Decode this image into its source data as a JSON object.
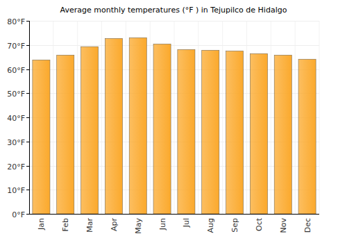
{
  "chart_data": {
    "type": "bar",
    "title": "Average monthly temperatures (°F ) in Tejupilco de Hidalgo",
    "categories": [
      "Jan",
      "Feb",
      "Mar",
      "Apr",
      "May",
      "Jun",
      "Jul",
      "Aug",
      "Sep",
      "Oct",
      "Nov",
      "Dec"
    ],
    "values": [
      63.8,
      65.8,
      69.3,
      72.7,
      73.0,
      70.4,
      68.1,
      67.8,
      67.5,
      66.4,
      65.8,
      64.1
    ],
    "color": "#fba92c",
    "ylim": [
      0,
      80
    ],
    "yticks": [
      {
        "value": 0,
        "label": "0°F"
      },
      {
        "value": 10,
        "label": "10°F"
      },
      {
        "value": 20,
        "label": "20°F"
      },
      {
        "value": 30,
        "label": "30°F"
      },
      {
        "value": 40,
        "label": "40°F"
      },
      {
        "value": 50,
        "label": "50°F"
      },
      {
        "value": 60,
        "label": "60°F"
      },
      {
        "value": 70,
        "label": "70°F"
      },
      {
        "value": 80,
        "label": "80°F"
      }
    ],
    "grid": true
  }
}
